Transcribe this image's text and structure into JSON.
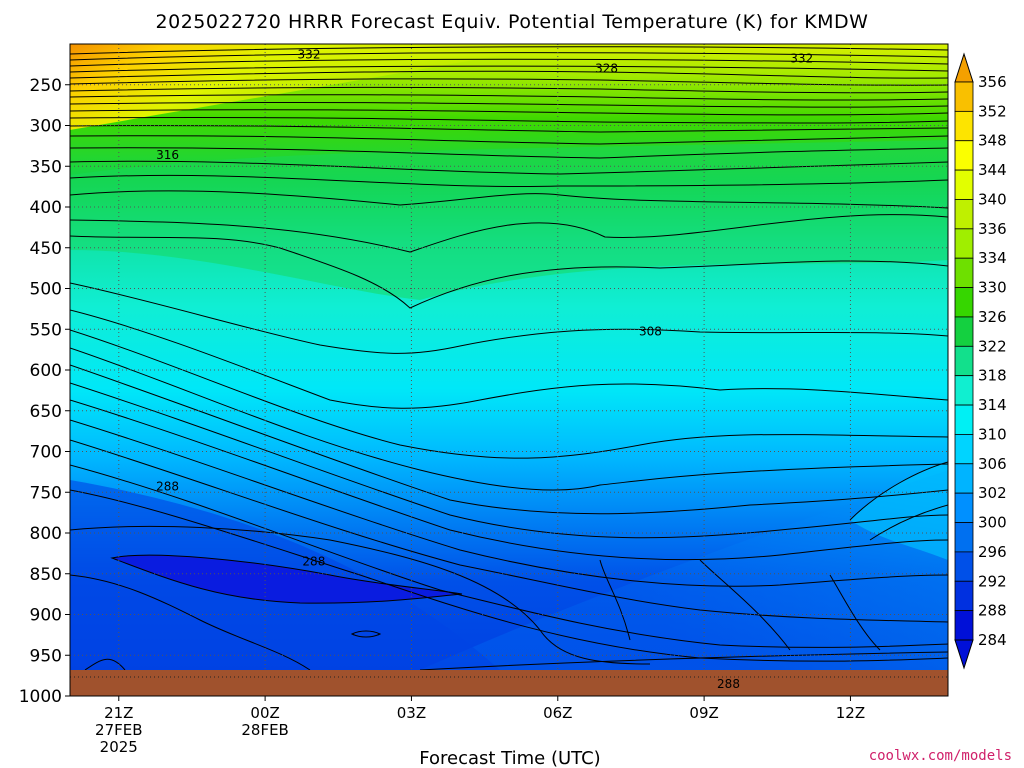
{
  "chart_data": {
    "type": "contour",
    "title": "2025022720 HRRR Forecast Equiv. Potential Temperature (K) for KMDW",
    "xlabel": "Forecast Time (UTC)",
    "credit": "coolwx.com/models",
    "x_ticks": [
      {
        "hour": 21,
        "lines": [
          "21Z",
          "27FEB",
          "2025"
        ]
      },
      {
        "hour": 24,
        "lines": [
          "00Z",
          "28FEB"
        ]
      },
      {
        "hour": 27,
        "lines": [
          "03Z"
        ]
      },
      {
        "hour": 30,
        "lines": [
          "06Z"
        ]
      },
      {
        "hour": 33,
        "lines": [
          "09Z"
        ]
      },
      {
        "hour": 36,
        "lines": [
          "12Z"
        ]
      }
    ],
    "xlim": [
      20,
      38
    ],
    "y_ticks": [
      250,
      300,
      350,
      400,
      450,
      500,
      550,
      600,
      650,
      700,
      750,
      800,
      850,
      900,
      950,
      1000
    ],
    "ylim": [
      200,
      1000
    ],
    "colorbar_levels": [
      356,
      352,
      348,
      344,
      340,
      336,
      334,
      330,
      326,
      322,
      318,
      314,
      310,
      306,
      302,
      300,
      296,
      292,
      288,
      284
    ],
    "colorbar_colors": [
      "#f4a000",
      "#f9c000",
      "#fde400",
      "#fbff00",
      "#e2ff00",
      "#bff000",
      "#a0ee00",
      "#6ee000",
      "#36d600",
      "#14d040",
      "#12e08c",
      "#10efd0",
      "#00f0f4",
      "#00d4ff",
      "#00b4ff",
      "#0090ff",
      "#0070f0",
      "#0050e8",
      "#0030e0",
      "#0010d8"
    ],
    "contour_labels": [
      {
        "text": "332",
        "hour": 24.9,
        "p": 213
      },
      {
        "text": "332",
        "hour": 35.0,
        "p": 218
      },
      {
        "text": "328",
        "hour": 31.0,
        "p": 230
      },
      {
        "text": "316",
        "hour": 22.0,
        "p": 336
      },
      {
        "text": "308",
        "hour": 31.9,
        "p": 553
      },
      {
        "text": "288",
        "hour": 22.0,
        "p": 743
      },
      {
        "text": "288",
        "hour": 25.0,
        "p": 835
      },
      {
        "text": "288",
        "hour": 33.5,
        "p": 985
      }
    ]
  }
}
